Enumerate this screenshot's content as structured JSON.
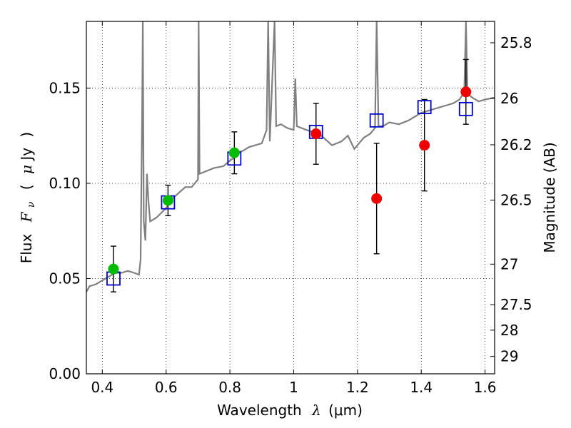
{
  "chart_data": {
    "type": "scatter",
    "x_axis": {
      "label": "Wavelength",
      "symbol": "λ",
      "unit": "(μm)",
      "range": [
        0.35,
        1.63
      ],
      "ticks": [
        0.4,
        0.6,
        0.8,
        1.0,
        1.2,
        1.4,
        1.6
      ],
      "tick_labels": [
        "0.4",
        "0.6",
        "0.8",
        "1",
        "1.2",
        "1.4",
        "1.6"
      ]
    },
    "y_axis": {
      "label": "Flux",
      "symbol": "F",
      "subscript": "ν",
      "unit_open": "(",
      "unit_mu": "μ",
      "unit_rest": "Jy",
      "unit_close": ")",
      "range": [
        0.0,
        0.185
      ],
      "ticks": [
        0.0,
        0.05,
        0.1,
        0.15
      ],
      "tick_labels": [
        "0.00",
        "0.05",
        "0.10",
        "0.15"
      ]
    },
    "y2_axis": {
      "label": "Magnitude (AB)",
      "ticks": [
        25.8,
        26.0,
        26.2,
        26.5,
        27.0,
        27.5,
        28.0,
        29.0
      ],
      "tick_labels": [
        "25.8",
        "26",
        "26.2",
        "26.5",
        "27",
        "27.5",
        "28",
        "29"
      ]
    },
    "grid": true,
    "series": [
      {
        "kind": "spectrum",
        "color": "#808080",
        "points": [
          [
            0.35,
            0.043
          ],
          [
            0.36,
            0.046
          ],
          [
            0.38,
            0.047
          ],
          [
            0.4,
            0.049
          ],
          [
            0.42,
            0.051
          ],
          [
            0.44,
            0.053
          ],
          [
            0.46,
            0.053
          ],
          [
            0.48,
            0.054
          ],
          [
            0.5,
            0.053
          ],
          [
            0.515,
            0.052
          ],
          [
            0.52,
            0.06
          ],
          [
            0.525,
            0.14
          ],
          [
            0.527,
            0.185
          ],
          [
            0.53,
            0.08
          ],
          [
            0.535,
            0.07
          ],
          [
            0.54,
            0.105
          ],
          [
            0.545,
            0.09
          ],
          [
            0.55,
            0.08
          ],
          [
            0.57,
            0.082
          ],
          [
            0.6,
            0.087
          ],
          [
            0.62,
            0.092
          ],
          [
            0.64,
            0.095
          ],
          [
            0.66,
            0.098
          ],
          [
            0.68,
            0.098
          ],
          [
            0.7,
            0.102
          ],
          [
            0.702,
            0.185
          ],
          [
            0.705,
            0.105
          ],
          [
            0.72,
            0.106
          ],
          [
            0.75,
            0.108
          ],
          [
            0.78,
            0.109
          ],
          [
            0.8,
            0.112
          ],
          [
            0.81,
            0.113
          ],
          [
            0.82,
            0.116
          ],
          [
            0.84,
            0.117
          ],
          [
            0.86,
            0.119
          ],
          [
            0.88,
            0.12
          ],
          [
            0.9,
            0.121
          ],
          [
            0.915,
            0.128
          ],
          [
            0.92,
            0.185
          ],
          [
            0.925,
            0.122
          ],
          [
            0.94,
            0.185
          ],
          [
            0.945,
            0.13
          ],
          [
            0.96,
            0.131
          ],
          [
            0.98,
            0.129
          ],
          [
            1.0,
            0.128
          ],
          [
            1.005,
            0.155
          ],
          [
            1.01,
            0.13
          ],
          [
            1.04,
            0.128
          ],
          [
            1.08,
            0.126
          ],
          [
            1.12,
            0.12
          ],
          [
            1.15,
            0.122
          ],
          [
            1.17,
            0.125
          ],
          [
            1.19,
            0.118
          ],
          [
            1.2,
            0.12
          ],
          [
            1.22,
            0.124
          ],
          [
            1.24,
            0.126
          ],
          [
            1.255,
            0.129
          ],
          [
            1.26,
            0.185
          ],
          [
            1.266,
            0.13
          ],
          [
            1.28,
            0.13
          ],
          [
            1.3,
            0.132
          ],
          [
            1.33,
            0.131
          ],
          [
            1.36,
            0.133
          ],
          [
            1.38,
            0.135
          ],
          [
            1.4,
            0.137
          ],
          [
            1.44,
            0.139
          ],
          [
            1.48,
            0.141
          ],
          [
            1.5,
            0.142
          ],
          [
            1.52,
            0.144
          ],
          [
            1.535,
            0.148
          ],
          [
            1.54,
            0.185
          ],
          [
            1.545,
            0.147
          ],
          [
            1.56,
            0.145
          ],
          [
            1.58,
            0.143
          ],
          [
            1.6,
            0.144
          ],
          [
            1.63,
            0.145
          ]
        ]
      },
      {
        "kind": "model-photometry",
        "marker": "open-square",
        "color": "#0000cc",
        "points": [
          [
            0.435,
            0.05
          ],
          [
            0.606,
            0.09
          ],
          [
            0.814,
            0.113
          ],
          [
            1.07,
            0.127
          ],
          [
            1.26,
            0.133
          ],
          [
            1.41,
            0.14
          ],
          [
            1.54,
            0.139
          ]
        ]
      },
      {
        "kind": "optical-photometry",
        "marker": "filled-circle",
        "color": "#00bb00",
        "points": [
          {
            "x": 0.435,
            "y": 0.055,
            "err": 0.012
          },
          {
            "x": 0.606,
            "y": 0.091,
            "err": 0.008
          },
          {
            "x": 0.814,
            "y": 0.116,
            "err": 0.011
          }
        ]
      },
      {
        "kind": "ir-photometry",
        "marker": "filled-circle",
        "color": "#ee0000",
        "points": [
          {
            "x": 1.07,
            "y": 0.126,
            "err": 0.016
          },
          {
            "x": 1.26,
            "y": 0.092,
            "err": 0.029
          },
          {
            "x": 1.41,
            "y": 0.12,
            "err": 0.024
          },
          {
            "x": 1.54,
            "y": 0.148,
            "err": 0.017
          }
        ]
      }
    ]
  }
}
